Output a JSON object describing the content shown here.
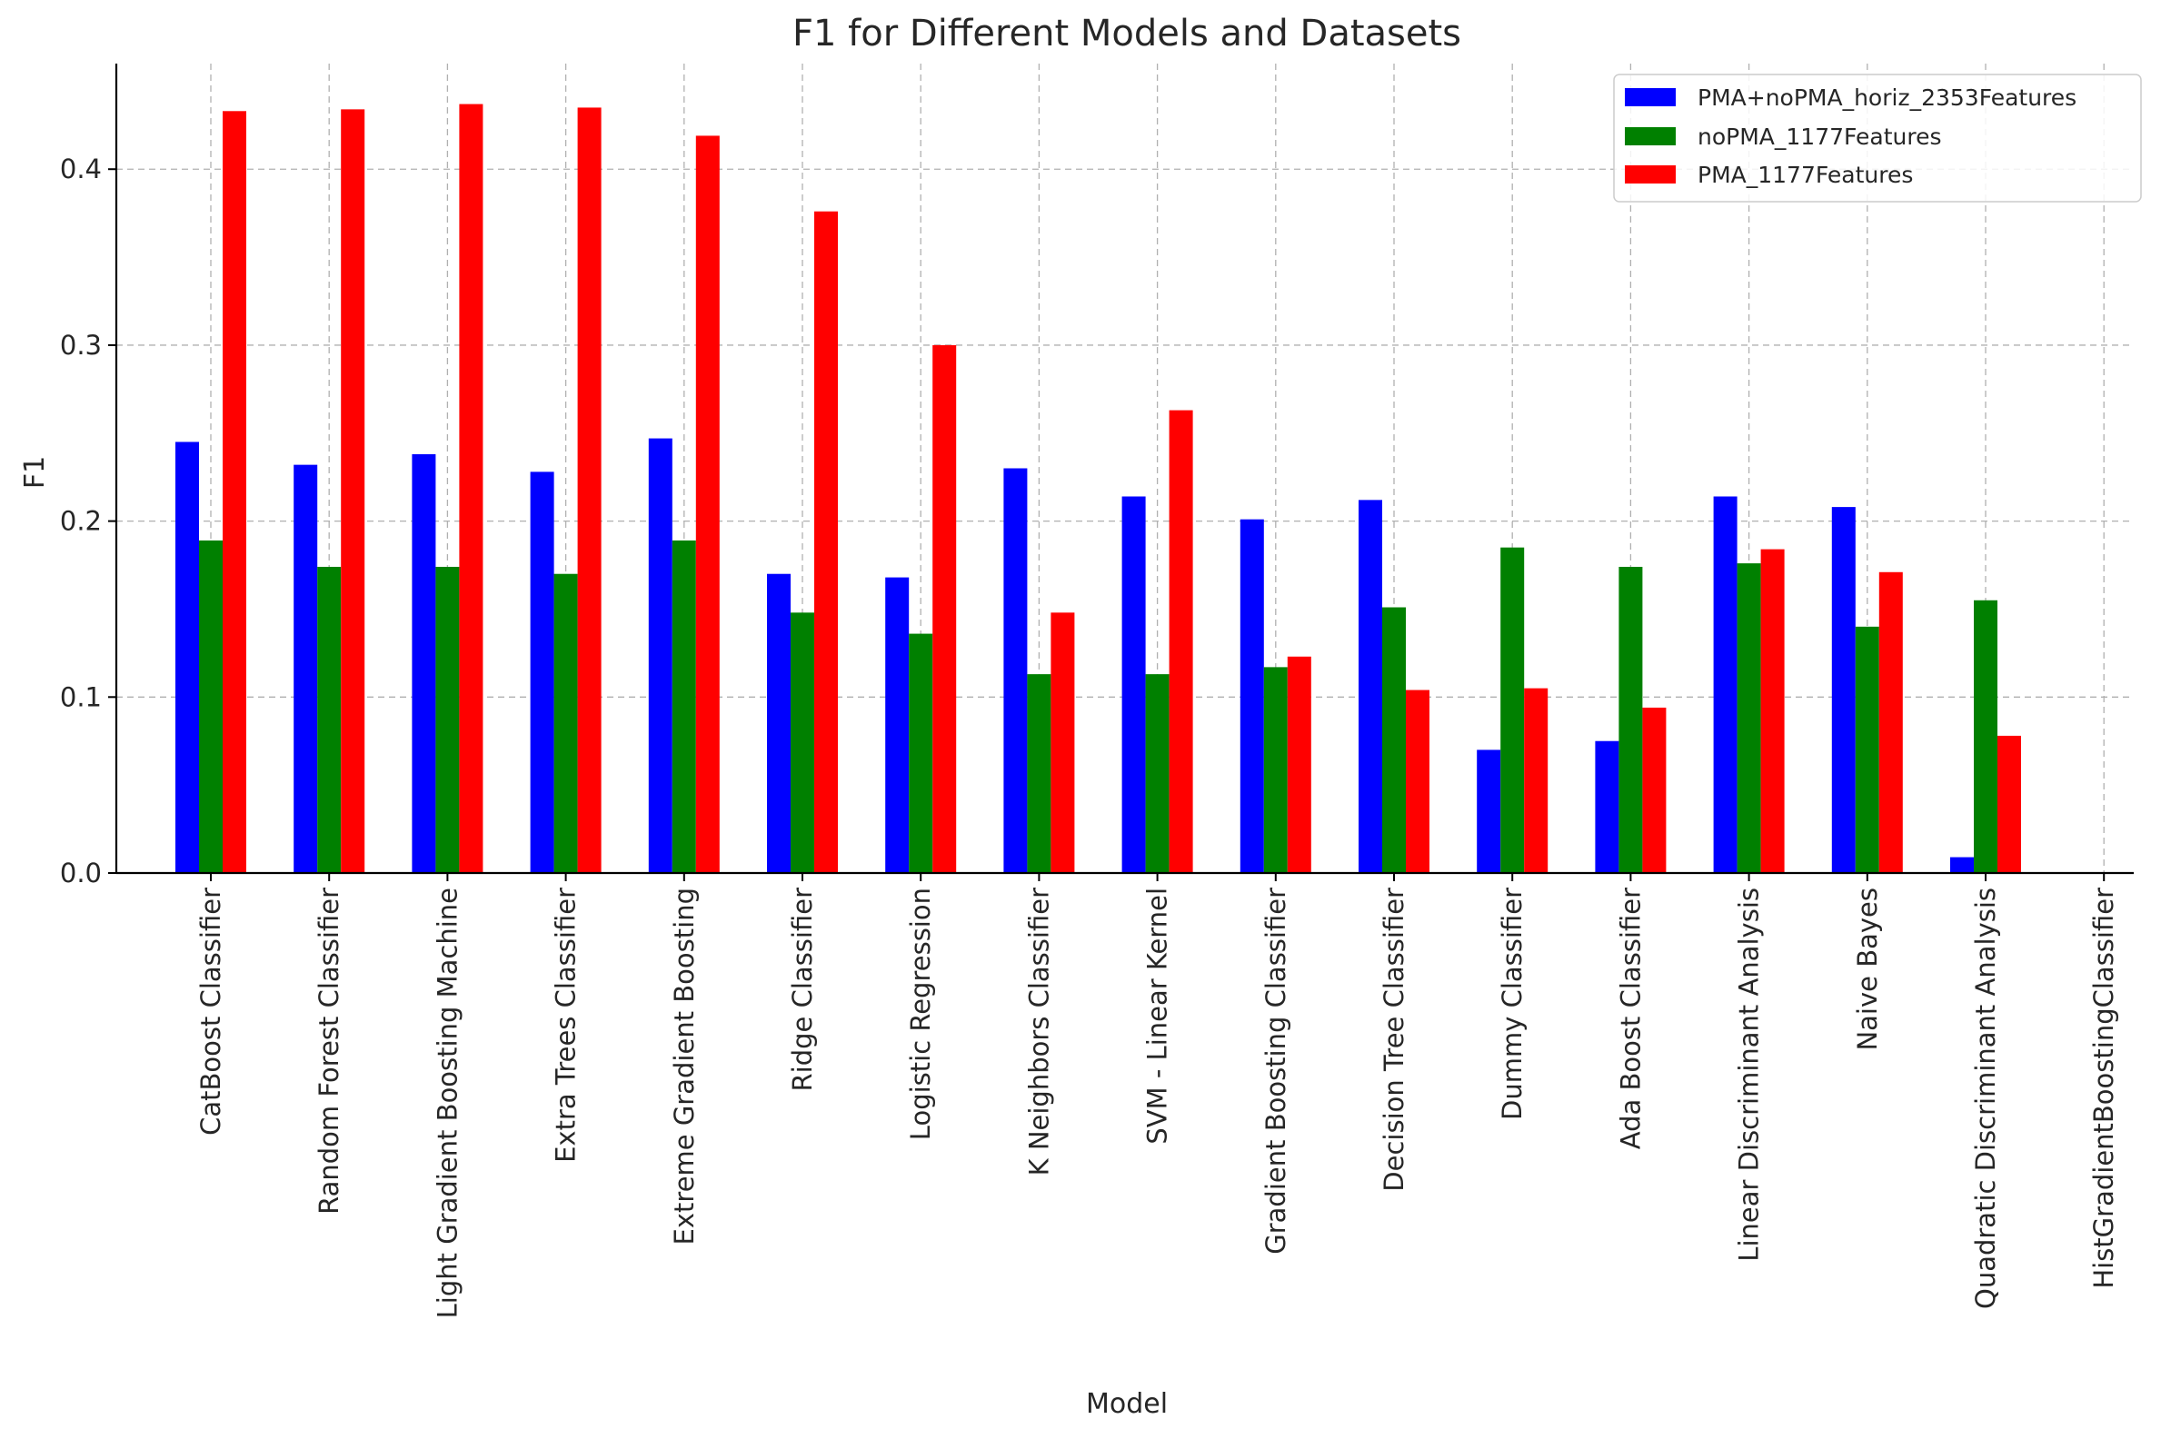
{
  "chart_data": {
    "type": "bar",
    "title": "F1 for Different Models and Datasets",
    "xlabel": "Model",
    "ylabel": "F1",
    "ylim": [
      0,
      0.46
    ],
    "yticks": [
      0.0,
      0.1,
      0.2,
      0.3,
      0.4
    ],
    "ytick_labels": [
      "0.0",
      "0.1",
      "0.2",
      "0.3",
      "0.4"
    ],
    "grid": true,
    "legend_position": "top-right",
    "categories": [
      "CatBoost Classifier",
      "Random Forest Classifier",
      "Light Gradient Boosting Machine",
      "Extra Trees Classifier",
      "Extreme Gradient Boosting",
      "Ridge Classifier",
      "Logistic Regression",
      "K Neighbors Classifier",
      "SVM - Linear Kernel",
      "Gradient Boosting Classifier",
      "Decision Tree Classifier",
      "Dummy Classifier",
      "Ada Boost Classifier",
      "Linear Discriminant Analysis",
      "Naive Bayes",
      "Quadratic Discriminant Analysis",
      "HistGradientBoostingClassifier"
    ],
    "series": [
      {
        "name": "PMA+noPMA_horiz_2353Features",
        "color": "#0000ff",
        "values": [
          0.245,
          0.232,
          0.238,
          0.228,
          0.247,
          0.17,
          0.168,
          0.23,
          0.214,
          0.201,
          0.212,
          0.07,
          0.075,
          0.214,
          0.208,
          0.009,
          null
        ]
      },
      {
        "name": "noPMA_1177Features",
        "color": "#008000",
        "values": [
          0.189,
          0.174,
          0.174,
          0.17,
          0.189,
          0.148,
          0.136,
          0.113,
          0.113,
          0.117,
          0.151,
          0.185,
          0.174,
          0.176,
          0.14,
          0.155,
          null
        ]
      },
      {
        "name": "PMA_1177Features",
        "color": "#ff0000",
        "values": [
          0.433,
          0.434,
          0.437,
          0.435,
          0.419,
          0.376,
          0.3,
          0.148,
          0.263,
          0.123,
          0.104,
          0.105,
          0.094,
          0.184,
          0.171,
          0.078,
          null
        ]
      }
    ]
  }
}
